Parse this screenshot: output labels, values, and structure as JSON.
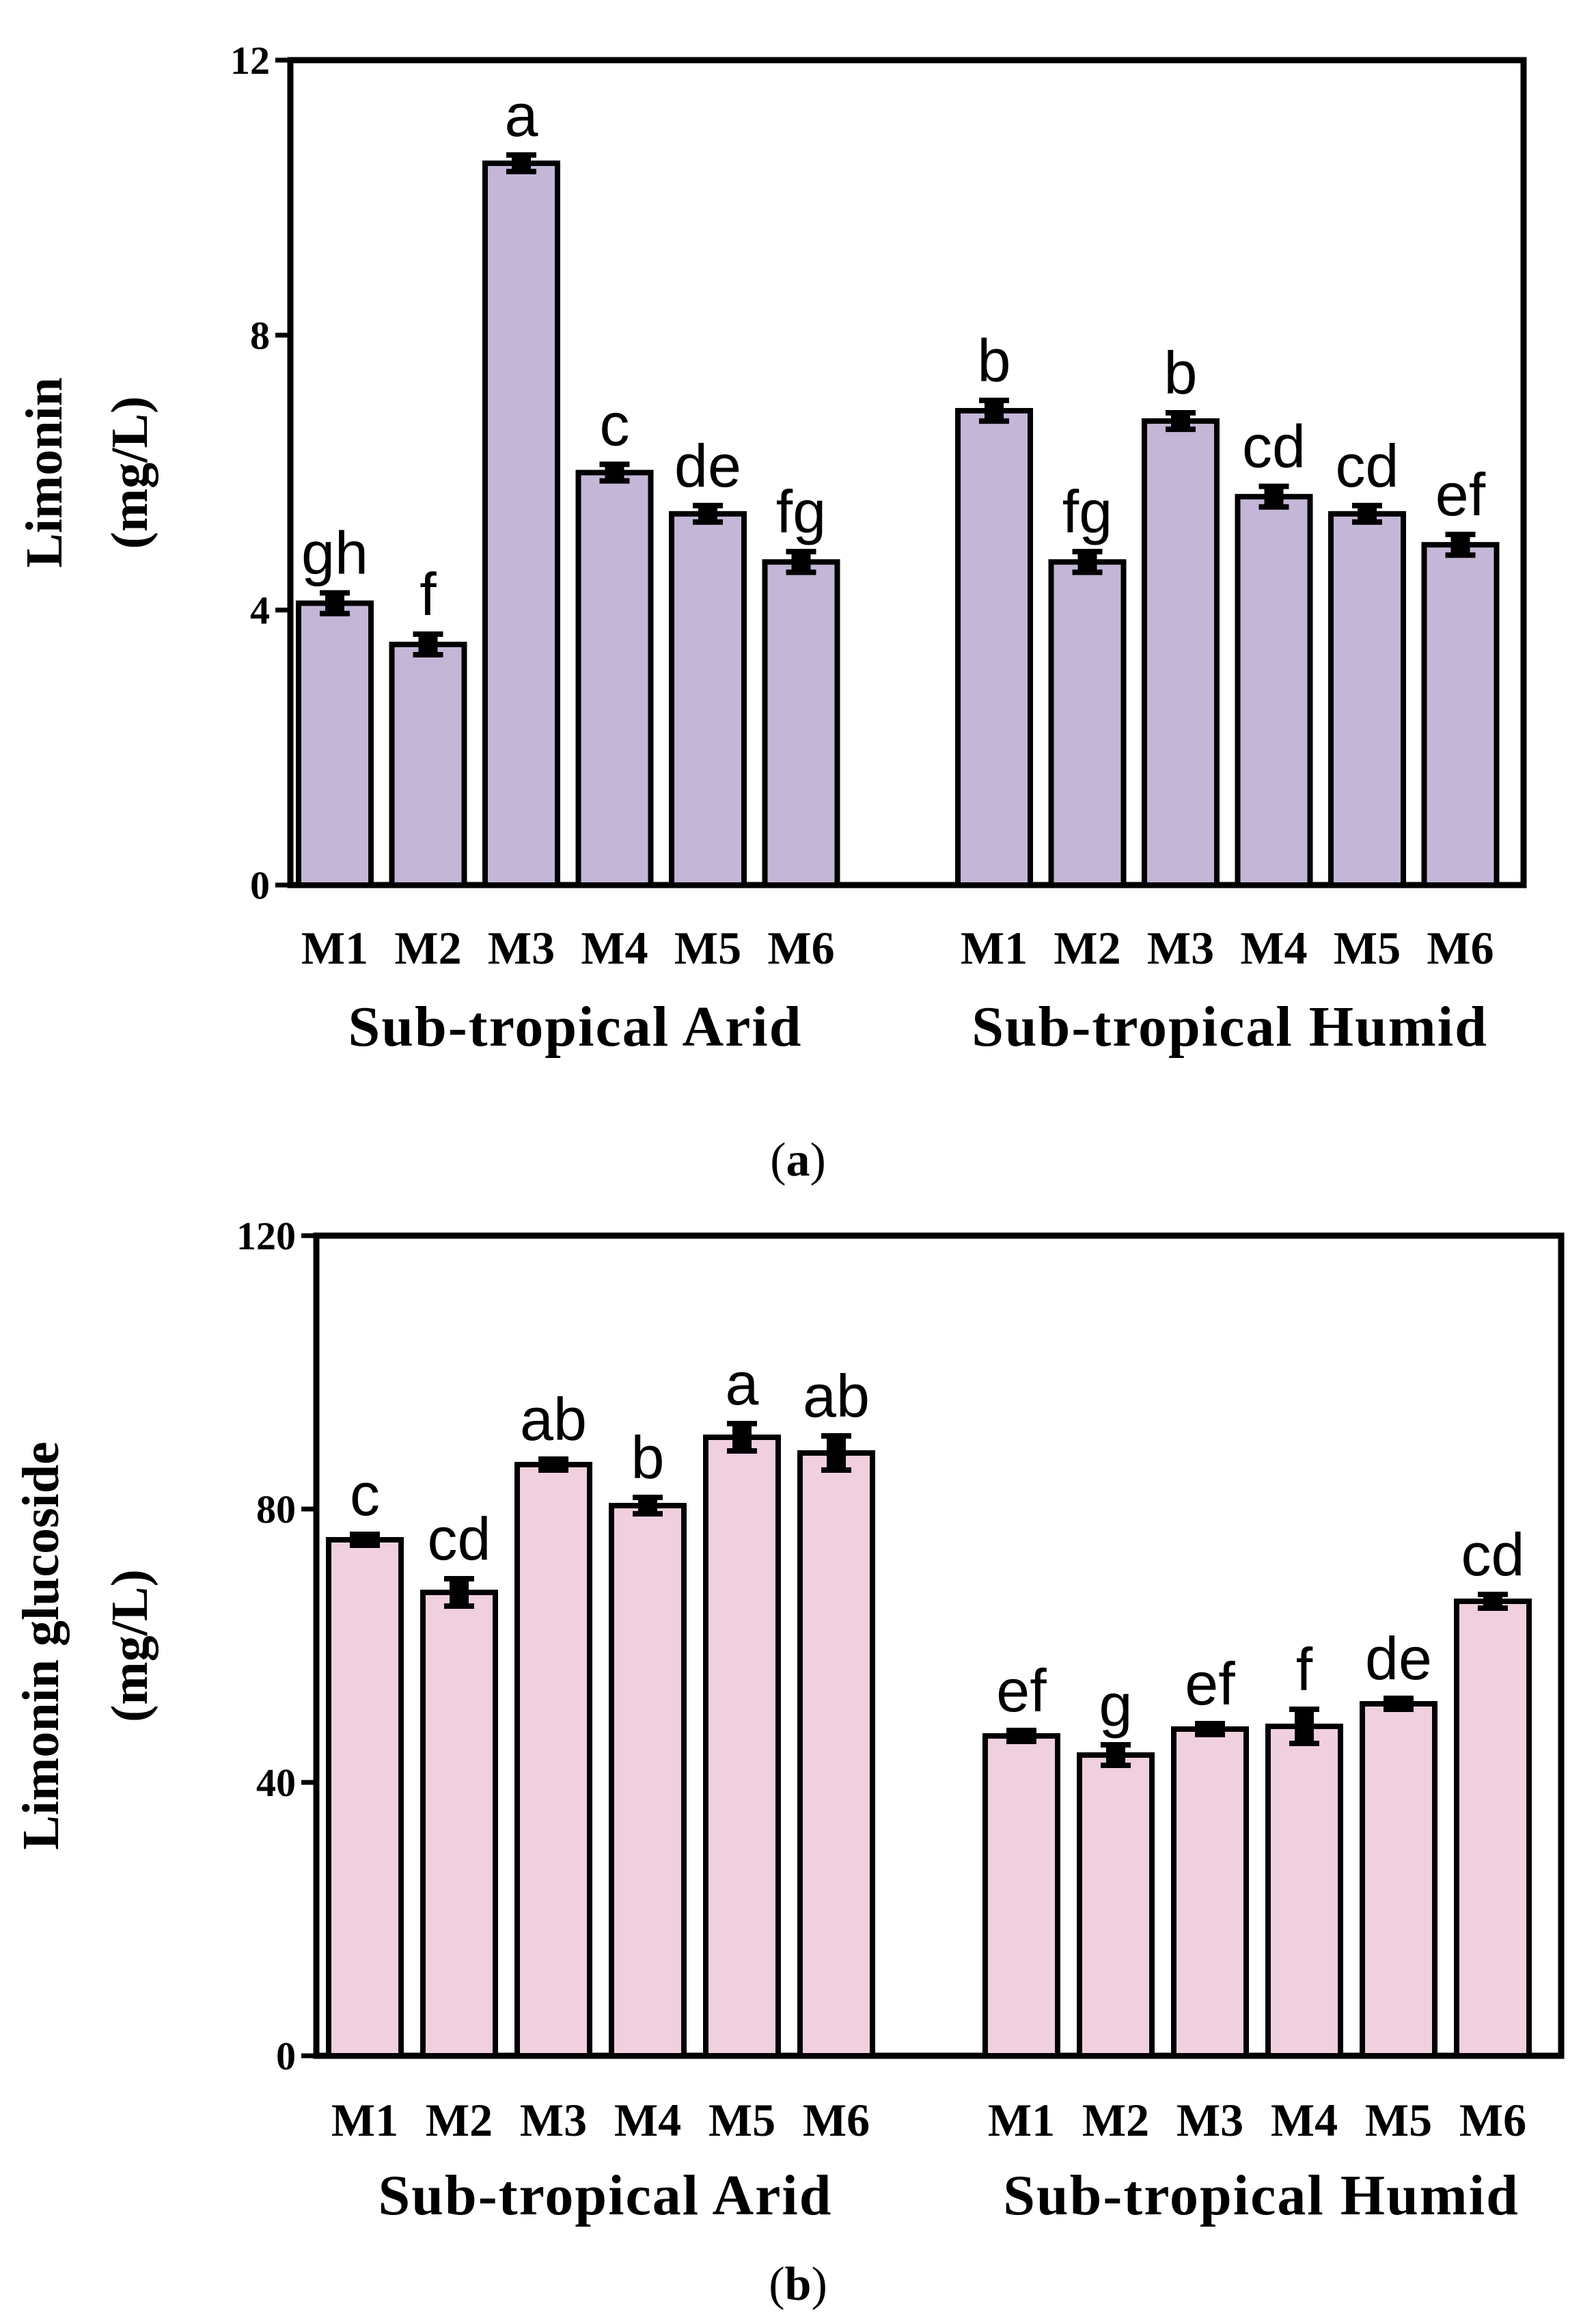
{
  "chart_data": [
    {
      "type": "bar",
      "panel_label": "a",
      "ylabel_line1": "Limonin",
      "ylabel_line2": "(mg/L)",
      "ylim": [
        0,
        12
      ],
      "yticks": [
        0,
        4,
        8,
        12
      ],
      "bar_color": "#c3b6d7",
      "groups": [
        {
          "name": "Sub-tropical Arid",
          "categories": [
            "M1",
            "M2",
            "M3",
            "M4",
            "M5",
            "M6"
          ],
          "values": [
            4.1,
            3.5,
            10.5,
            6.0,
            5.4,
            4.7
          ],
          "errors": [
            0.15,
            0.15,
            0.12,
            0.12,
            0.12,
            0.15
          ],
          "letters": [
            "gh",
            "f",
            "a",
            "c",
            "de",
            "fg"
          ]
        },
        {
          "name": "Sub-tropical Humid",
          "categories": [
            "M1",
            "M2",
            "M3",
            "M4",
            "M5",
            "M6"
          ],
          "values": [
            6.9,
            4.7,
            6.75,
            5.65,
            5.4,
            4.95
          ],
          "errors": [
            0.15,
            0.15,
            0.12,
            0.15,
            0.12,
            0.15
          ],
          "letters": [
            "b",
            "fg",
            "b",
            "cd",
            "cd",
            "ef"
          ]
        }
      ]
    },
    {
      "type": "bar",
      "panel_label": "b",
      "ylabel_line1": "Limonin glucoside",
      "ylabel_line2": "(mg/L)",
      "ylim": [
        0,
        120
      ],
      "yticks": [
        0,
        40,
        80,
        120
      ],
      "bar_color": "#f0cfdf",
      "groups": [
        {
          "name": "Sub-tropical Arid",
          "categories": [
            "M1",
            "M2",
            "M3",
            "M4",
            "M5",
            "M6"
          ],
          "values": [
            75.5,
            67.8,
            86.5,
            80.5,
            90.5,
            88.2
          ],
          "errors": [
            0.8,
            2.0,
            0.8,
            1.2,
            2.0,
            2.5
          ],
          "letters": [
            "c",
            "cd",
            "ab",
            "b",
            "a",
            "ab"
          ]
        },
        {
          "name": "Sub-tropical Humid",
          "categories": [
            "M1",
            "M2",
            "M3",
            "M4",
            "M5",
            "M6"
          ],
          "values": [
            46.8,
            44.0,
            47.8,
            48.2,
            51.5,
            66.5
          ],
          "errors": [
            0.8,
            1.5,
            0.8,
            2.5,
            0.8,
            1.0
          ],
          "letters": [
            "ef",
            "g",
            "ef",
            "f",
            "de",
            "cd"
          ]
        }
      ]
    }
  ]
}
